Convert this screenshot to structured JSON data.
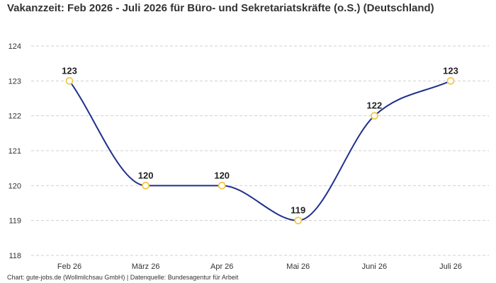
{
  "chart_data": {
    "type": "line",
    "title": "Vakanzzeit: Feb 2026 - Juli 2026 für Büro- und Sekretariatskräfte (o.S.) (Deutschland)",
    "categories": [
      "Feb 26",
      "März 26",
      "Apr 26",
      "Mai 26",
      "Juni 26",
      "Juli 26"
    ],
    "values": [
      123,
      120,
      120,
      119,
      122,
      123
    ],
    "data_labels": [
      "123",
      "120",
      "120",
      "119",
      "122",
      "123"
    ],
    "ylim": [
      118,
      124
    ],
    "yticks": [
      "118",
      "119",
      "120",
      "121",
      "122",
      "123",
      "124"
    ],
    "xlabel": "",
    "ylabel": "",
    "grid": "horizontal dashed",
    "line_color": "#1f2f8c",
    "marker_color": "#f2c94c",
    "smooth": true
  },
  "footer": "Chart: gute-jobs.de (Wollmilchsau GmbH) | Datenquelle: Bundesagentur für Arbeit"
}
